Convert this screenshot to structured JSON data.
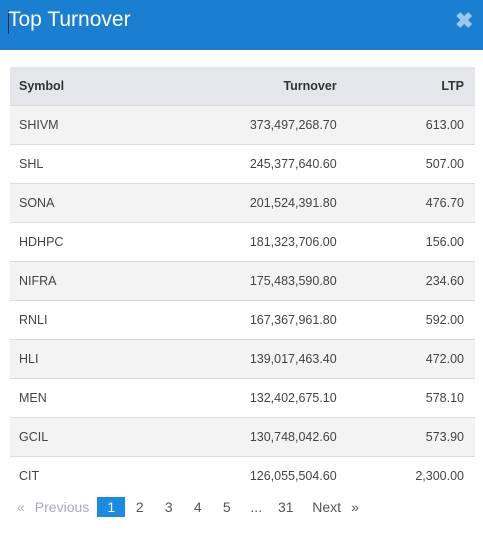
{
  "header": {
    "title": "Top Turnover",
    "close_glyph": "✖"
  },
  "table": {
    "columns": [
      "Symbol",
      "Turnover",
      "LTP"
    ],
    "rows": [
      {
        "symbol": "SHIVM",
        "turnover": "373,497,268.70",
        "ltp": "613.00"
      },
      {
        "symbol": "SHL",
        "turnover": "245,377,640.60",
        "ltp": "507.00"
      },
      {
        "symbol": "SONA",
        "turnover": "201,524,391.80",
        "ltp": "476.70"
      },
      {
        "symbol": "HDHPC",
        "turnover": "181,323,706.00",
        "ltp": "156.00"
      },
      {
        "symbol": "NIFRA",
        "turnover": "175,483,590.80",
        "ltp": "234.60"
      },
      {
        "symbol": "RNLI",
        "turnover": "167,367,961.80",
        "ltp": "592.00"
      },
      {
        "symbol": "HLI",
        "turnover": "139,017,463.40",
        "ltp": "472.00"
      },
      {
        "symbol": "MEN",
        "turnover": "132,402,675.10",
        "ltp": "578.10"
      },
      {
        "symbol": "GCIL",
        "turnover": "130,748,042.60",
        "ltp": "573.90"
      },
      {
        "symbol": "CIT",
        "turnover": "126,055,504.60",
        "ltp": "2,300.00"
      }
    ]
  },
  "pagination": {
    "prev_arrow": "«",
    "prev_label": "Previous",
    "pages": [
      "1",
      "2",
      "3",
      "4",
      "5"
    ],
    "ellipsis": "...",
    "last_page": "31",
    "next_label": "Next",
    "next_arrow": "»",
    "active_page": "1"
  },
  "colors": {
    "header_bg": "#1a7fd0",
    "active_page_bg": "#1a8be0"
  }
}
